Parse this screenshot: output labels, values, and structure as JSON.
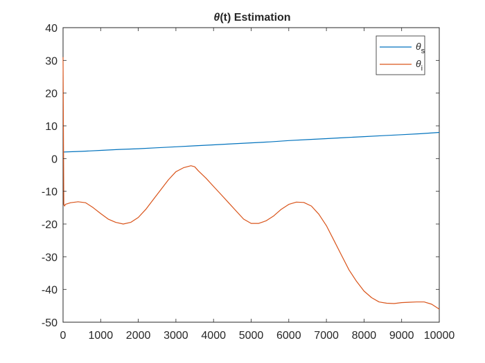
{
  "chart_data": {
    "type": "line",
    "title": "(t) Estimation",
    "title_symbol": "θ",
    "xlabel": "",
    "ylabel": "",
    "xlim": [
      0,
      10000
    ],
    "ylim": [
      -50,
      40
    ],
    "xticks": [
      0,
      1000,
      2000,
      3000,
      4000,
      5000,
      6000,
      7000,
      8000,
      9000,
      10000
    ],
    "yticks": [
      -50,
      -40,
      -30,
      -20,
      -10,
      0,
      10,
      20,
      30,
      40
    ],
    "grid": false,
    "legend_position": "top-right",
    "series": [
      {
        "name": "θs",
        "symbol": "θ",
        "subscript": "s",
        "color": "#0072BD",
        "x": [
          0,
          500,
          1000,
          1500,
          2000,
          2500,
          3000,
          3500,
          4000,
          4500,
          5000,
          5500,
          6000,
          6500,
          7000,
          7500,
          8000,
          8500,
          9000,
          9500,
          10000
        ],
        "y": [
          2.0,
          2.2,
          2.5,
          2.8,
          3.0,
          3.3,
          3.6,
          3.9,
          4.2,
          4.5,
          4.8,
          5.1,
          5.5,
          5.8,
          6.1,
          6.4,
          6.7,
          7.0,
          7.3,
          7.6,
          8.0
        ]
      },
      {
        "name": "θi",
        "symbol": "θ",
        "subscript": "i",
        "color": "#D95319",
        "x": [
          0,
          20,
          40,
          60,
          200,
          400,
          600,
          800,
          1000,
          1200,
          1400,
          1600,
          1800,
          2000,
          2200,
          2400,
          2600,
          2800,
          3000,
          3200,
          3400,
          3500,
          3600,
          3800,
          4000,
          4200,
          4400,
          4600,
          4800,
          5000,
          5200,
          5400,
          5600,
          5800,
          6000,
          6200,
          6400,
          6600,
          6800,
          7000,
          7200,
          7400,
          7600,
          7800,
          8000,
          8200,
          8400,
          8600,
          8800,
          9000,
          9200,
          9400,
          9600,
          9800,
          10000
        ],
        "y": [
          31.0,
          -14.0,
          -14.5,
          -14.0,
          -13.5,
          -13.2,
          -13.5,
          -15.0,
          -16.8,
          -18.5,
          -19.5,
          -20.0,
          -19.5,
          -18.0,
          -15.5,
          -12.5,
          -9.5,
          -6.5,
          -4.0,
          -2.8,
          -2.2,
          -2.5,
          -3.8,
          -6.0,
          -8.5,
          -11.0,
          -13.5,
          -16.0,
          -18.5,
          -19.8,
          -19.8,
          -19.0,
          -17.5,
          -15.5,
          -14.0,
          -13.3,
          -13.4,
          -14.5,
          -17.0,
          -20.5,
          -25.0,
          -29.5,
          -34.0,
          -37.5,
          -40.5,
          -42.5,
          -43.8,
          -44.2,
          -44.3,
          -44.0,
          -43.9,
          -43.8,
          -43.8,
          -44.5,
          -46.0
        ]
      }
    ]
  }
}
